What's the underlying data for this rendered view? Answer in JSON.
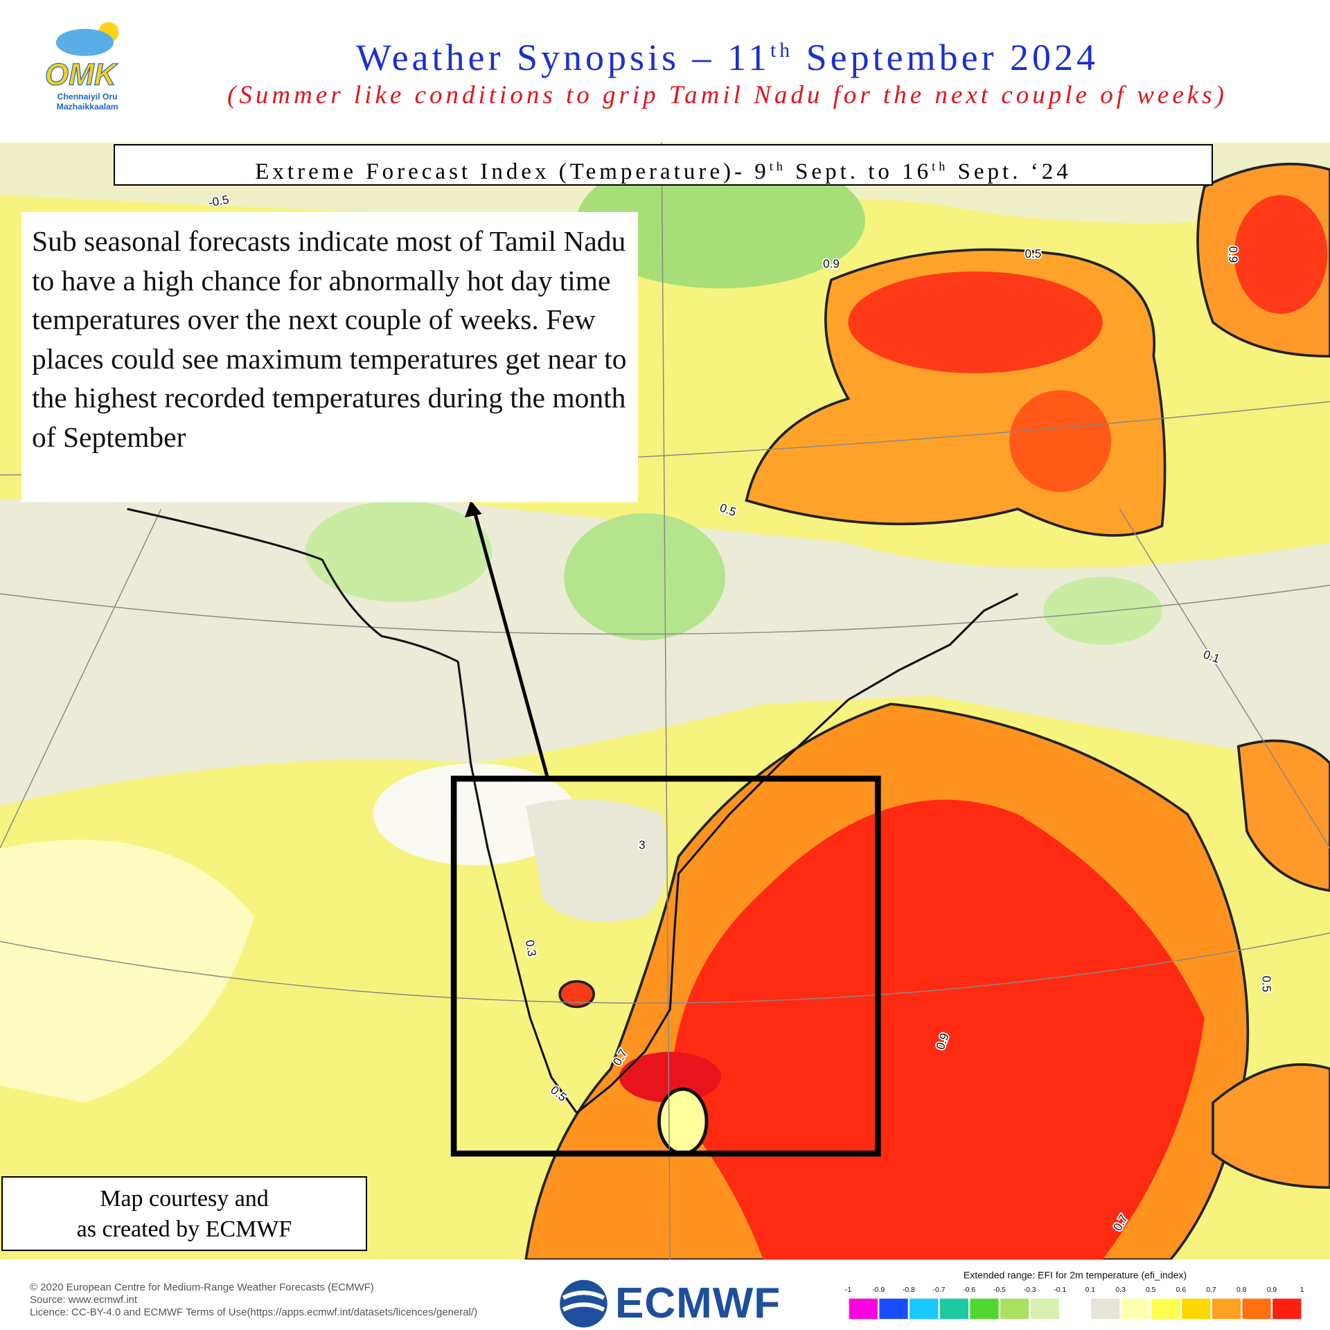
{
  "logo": {
    "mark": "OMK",
    "line1": "Chennaiyil Oru",
    "line2": "Mazhaikkaalam"
  },
  "header": {
    "title": [
      "Weather Synopsis – 11",
      "th",
      " September 2024"
    ],
    "subtitle": "(Summer like conditions to grip Tamil Nadu for the next couple of weeks)"
  },
  "map_title": [
    "Extreme Forecast Index (Temperature)- 9",
    "th",
    " Sept. to 16",
    "th",
    " Sept. ‘24"
  ],
  "note": "Sub seasonal forecasts indicate most of Tamil Nadu to have a high chance for abnormally hot day time temperatures over the next couple of weeks. Few places could see maximum temperatures get near to the highest recorded temperatures during the month of September",
  "credit": [
    "Map courtesy and",
    "as created by ECMWF"
  ],
  "map_labels": [
    "-0.5",
    "0.9",
    "0.5",
    "0.9",
    "0.5",
    "0.1",
    "0.3",
    "0.7",
    "0.5",
    "0.9",
    "0.5",
    "0.7",
    "3"
  ],
  "footer": {
    "copyright": [
      "© 2020 European Centre for Medium-Range Weather Forecasts (ECMWF)",
      "Source: www.ecmwf.int",
      "Licence: CC-BY-4.0 and ECMWF Terms of Use(https://apps.ecmwf.int/datasets/licences/general/)"
    ],
    "brand": "ECMWF"
  },
  "legend": {
    "title": "Extended range: EFI for 2m temperature (efi_index)",
    "ticks": [
      -1,
      -0.9,
      -0.8,
      -0.7,
      -0.6,
      -0.5,
      -0.3,
      -0.1,
      0.1,
      0.3,
      0.5,
      0.6,
      0.7,
      0.8,
      0.9,
      1
    ],
    "colors": [
      "#ff00e0",
      "#1a4cff",
      "#18c8ff",
      "#1ec8a0",
      "#50d830",
      "#a8e060",
      "#d8f0b0",
      "#ffffff",
      "#e6e4d6",
      "#ffffb0",
      "#ffff50",
      "#ffd800",
      "#ffa020",
      "#ff7010",
      "#ff2010"
    ]
  }
}
